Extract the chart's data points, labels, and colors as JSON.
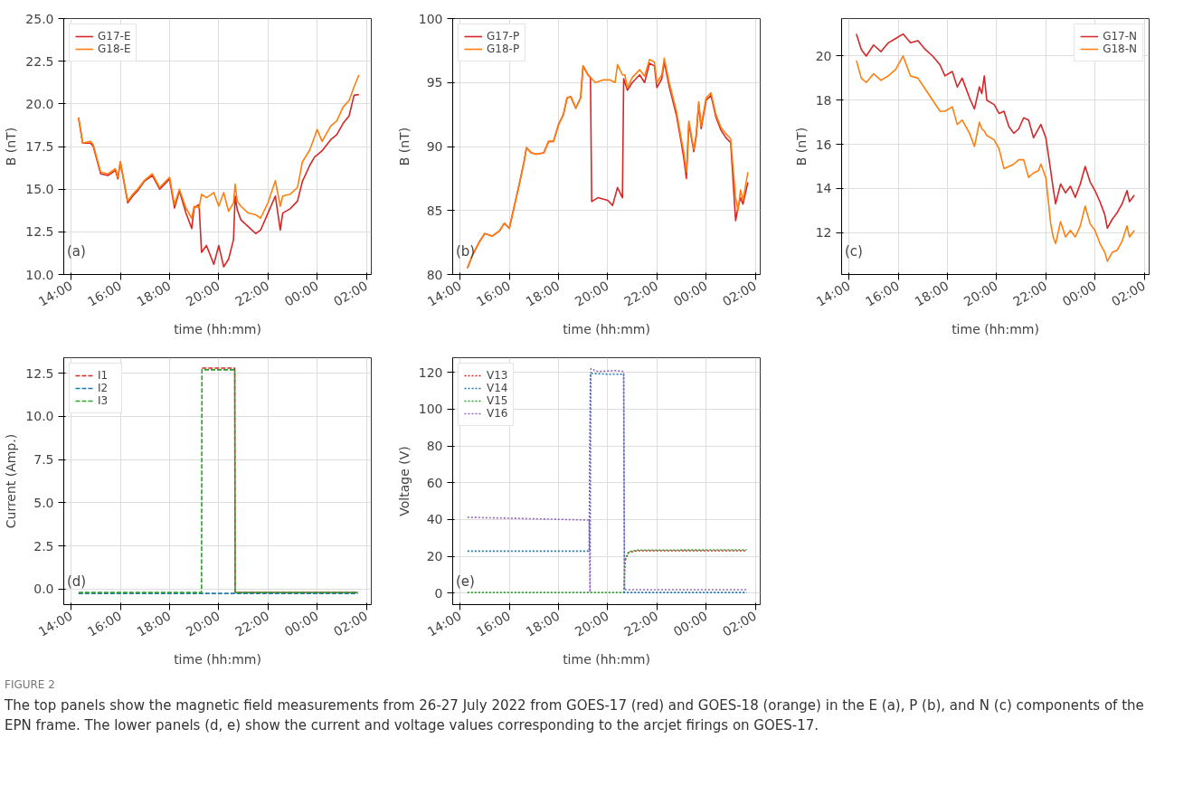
{
  "chart_data": [
    {
      "type": "line",
      "xlabel": "time (hh:mm)",
      "ylabel": "B (nT)",
      "annotations": [
        "(a)"
      ],
      "line_style": "solid",
      "grid": true,
      "legend": "top left",
      "xlim": [
        "2022-07-26T13:42",
        "2022-07-27T02:12"
      ],
      "xticks": [
        {
          "value": "2022-07-26T14:00",
          "label": "14:00"
        },
        {
          "value": "2022-07-26T16:00",
          "label": "16:00"
        },
        {
          "value": "2022-07-26T18:00",
          "label": "18:00"
        },
        {
          "value": "2022-07-26T20:00",
          "label": "20:00"
        },
        {
          "value": "2022-07-26T22:00",
          "label": "22:00"
        },
        {
          "value": "2022-07-27T00:00",
          "label": "00:00"
        },
        {
          "value": "2022-07-27T02:00",
          "label": "02:00"
        }
      ],
      "ylim": [
        10,
        25
      ],
      "yticks": [
        {
          "value": 10,
          "label": "10.0"
        },
        {
          "value": 12.5,
          "label": "12.5"
        },
        {
          "value": 15,
          "label": "15.0"
        },
        {
          "value": 17.5,
          "label": "17.5"
        },
        {
          "value": 20,
          "label": "20.0"
        },
        {
          "value": 22.5,
          "label": "22.5"
        },
        {
          "value": 25,
          "label": "25.0"
        }
      ],
      "x": [
        "2022-07-26T14:18",
        "2022-07-26T14:28",
        "2022-07-26T14:47",
        "2022-07-26T14:54",
        "2022-07-26T15:12",
        "2022-07-26T15:30",
        "2022-07-26T15:48",
        "2022-07-26T15:54",
        "2022-07-26T16:00",
        "2022-07-26T16:18",
        "2022-07-26T16:30",
        "2022-07-26T16:42",
        "2022-07-26T16:58",
        "2022-07-26T17:18",
        "2022-07-26T17:36",
        "2022-07-26T18:00",
        "2022-07-26T18:12",
        "2022-07-26T18:24",
        "2022-07-26T18:40",
        "2022-07-26T18:54",
        "2022-07-26T19:00",
        "2022-07-26T19:12",
        "2022-07-26T19:18",
        "2022-07-26T19:30",
        "2022-07-26T19:48",
        "2022-07-26T20:00",
        "2022-07-26T20:12",
        "2022-07-26T20:24",
        "2022-07-26T20:36",
        "2022-07-26T20:40",
        "2022-07-26T20:45",
        "2022-07-26T20:54",
        "2022-07-26T21:12",
        "2022-07-26T21:30",
        "2022-07-26T21:42",
        "2022-07-26T22:00",
        "2022-07-26T22:18",
        "2022-07-26T22:30",
        "2022-07-26T22:36",
        "2022-07-26T22:54",
        "2022-07-26T23:12",
        "2022-07-26T23:24",
        "2022-07-26T23:42",
        "2022-07-26T23:54",
        "2022-07-27T00:00",
        "2022-07-27T00:12",
        "2022-07-27T00:33",
        "2022-07-27T00:48",
        "2022-07-27T01:03",
        "2022-07-27T01:18",
        "2022-07-27T01:30",
        "2022-07-27T01:42"
      ],
      "series": [
        {
          "name": "G17-E",
          "color": "#d62728",
          "values": [
            19.2,
            17.7,
            17.7,
            17.5,
            15.9,
            15.8,
            16.1,
            15.6,
            16.6,
            14.2,
            14.6,
            14.9,
            15.45,
            15.8,
            15.0,
            15.6,
            13.9,
            14.9,
            13.6,
            12.7,
            13.9,
            14.1,
            11.3,
            11.7,
            10.6,
            11.7,
            10.45,
            10.9,
            12.05,
            14.6,
            13.8,
            13.2,
            12.8,
            12.4,
            12.6,
            13.6,
            14.6,
            12.6,
            13.6,
            13.85,
            14.3,
            15.45,
            16.4,
            16.9,
            17.0,
            17.25,
            17.9,
            18.2,
            18.85,
            19.3,
            20.5,
            20.55
          ]
        },
        {
          "name": "G18-E",
          "color": "#ff7f0e",
          "values": [
            19.2,
            17.7,
            17.8,
            17.6,
            16.0,
            15.9,
            16.2,
            15.7,
            16.6,
            14.3,
            14.7,
            15.0,
            15.5,
            15.9,
            15.1,
            15.7,
            14.1,
            15.0,
            13.9,
            13.3,
            14.0,
            13.9,
            14.7,
            14.5,
            14.8,
            14.0,
            14.8,
            13.7,
            14.2,
            15.3,
            14.3,
            14.0,
            13.6,
            13.5,
            13.3,
            14.2,
            15.5,
            14.0,
            14.6,
            14.7,
            15.1,
            16.6,
            17.3,
            18.1,
            18.5,
            17.8,
            18.7,
            19.0,
            19.8,
            20.2,
            21.0,
            21.7
          ]
        }
      ]
    },
    {
      "type": "line",
      "xlabel": "time (hh:mm)",
      "ylabel": "B (nT)",
      "annotations": [
        "(b)"
      ],
      "line_style": "solid",
      "grid": true,
      "legend": "top left",
      "xlim": [
        "2022-07-26T13:42",
        "2022-07-27T02:12"
      ],
      "xticks": [
        {
          "value": "2022-07-26T14:00",
          "label": "14:00"
        },
        {
          "value": "2022-07-26T16:00",
          "label": "16:00"
        },
        {
          "value": "2022-07-26T18:00",
          "label": "18:00"
        },
        {
          "value": "2022-07-26T20:00",
          "label": "20:00"
        },
        {
          "value": "2022-07-26T22:00",
          "label": "22:00"
        },
        {
          "value": "2022-07-27T00:00",
          "label": "00:00"
        },
        {
          "value": "2022-07-27T02:00",
          "label": "02:00"
        }
      ],
      "ylim": [
        80,
        100
      ],
      "yticks": [
        80,
        85,
        90,
        95,
        100
      ],
      "series": [
        {
          "name": "G17-P",
          "color": "#d62728",
          "x": [
            "2022-07-26T14:18",
            "2022-07-26T14:30",
            "2022-07-26T14:48",
            "2022-07-26T15:00",
            "2022-07-26T15:18",
            "2022-07-26T15:36",
            "2022-07-26T15:48",
            "2022-07-26T16:00",
            "2022-07-26T16:12",
            "2022-07-26T16:24",
            "2022-07-26T16:36",
            "2022-07-26T16:42",
            "2022-07-26T16:54",
            "2022-07-26T17:06",
            "2022-07-26T17:24",
            "2022-07-26T17:36",
            "2022-07-26T17:48",
            "2022-07-26T18:00",
            "2022-07-26T18:12",
            "2022-07-26T18:21",
            "2022-07-26T18:30",
            "2022-07-26T18:42",
            "2022-07-26T18:54",
            "2022-07-26T19:00",
            "2022-07-26T19:12",
            "2022-07-26T19:18",
            "2022-07-26T19:21",
            "2022-07-26T19:36",
            "2022-07-26T20:00",
            "2022-07-26T20:12",
            "2022-07-26T20:24",
            "2022-07-26T20:36",
            "2022-07-26T20:39",
            "2022-07-26T20:48",
            "2022-07-26T21:00",
            "2022-07-26T21:18",
            "2022-07-26T21:30",
            "2022-07-26T21:42",
            "2022-07-26T21:54",
            "2022-07-26T22:00",
            "2022-07-26T22:12",
            "2022-07-26T22:18",
            "2022-07-26T22:30",
            "2022-07-26T22:48",
            "2022-07-26T23:00",
            "2022-07-26T23:06",
            "2022-07-26T23:12",
            "2022-07-26T23:18",
            "2022-07-26T23:30",
            "2022-07-26T23:36",
            "2022-07-26T23:42",
            "2022-07-26T23:48",
            "2022-07-27T00:00",
            "2022-07-27T00:12",
            "2022-07-27T00:24",
            "2022-07-27T00:36",
            "2022-07-27T00:48",
            "2022-07-27T01:00",
            "2022-07-27T01:12",
            "2022-07-27T01:18",
            "2022-07-27T01:24",
            "2022-07-27T01:30",
            "2022-07-27T01:42"
          ],
          "values": [
            80.5,
            81.5,
            82.6,
            83.2,
            83.0,
            83.4,
            84.0,
            83.6,
            85.3,
            87.0,
            88.8,
            89.9,
            89.5,
            89.4,
            89.5,
            90.4,
            90.4,
            91.7,
            92.5,
            93.8,
            93.9,
            93.0,
            93.8,
            96.3,
            95.6,
            95.4,
            85.7,
            86.0,
            85.8,
            85.4,
            86.8,
            86.0,
            95.3,
            94.4,
            95.0,
            95.6,
            95.0,
            96.5,
            96.3,
            94.6,
            95.3,
            96.6,
            94.7,
            92.4,
            90.2,
            89.0,
            87.5,
            91.8,
            89.6,
            90.8,
            93.3,
            91.4,
            93.6,
            94.0,
            92.3,
            91.3,
            90.7,
            90.3,
            84.2,
            85.3,
            86.0,
            85.5,
            87.2
          ]
        },
        {
          "name": "G18-P",
          "color": "#ff7f0e",
          "x": [
            "2022-07-26T14:18",
            "2022-07-26T14:30",
            "2022-07-26T14:48",
            "2022-07-26T15:00",
            "2022-07-26T15:18",
            "2022-07-26T15:36",
            "2022-07-26T15:48",
            "2022-07-26T16:00",
            "2022-07-26T16:12",
            "2022-07-26T16:24",
            "2022-07-26T16:36",
            "2022-07-26T16:42",
            "2022-07-26T16:54",
            "2022-07-26T17:06",
            "2022-07-26T17:24",
            "2022-07-26T17:36",
            "2022-07-26T17:48",
            "2022-07-26T18:00",
            "2022-07-26T18:12",
            "2022-07-26T18:21",
            "2022-07-26T18:30",
            "2022-07-26T18:42",
            "2022-07-26T18:54",
            "2022-07-26T19:00",
            "2022-07-26T19:12",
            "2022-07-26T19:18",
            "2022-07-26T19:30",
            "2022-07-26T19:48",
            "2022-07-26T20:06",
            "2022-07-26T20:18",
            "2022-07-26T20:24",
            "2022-07-26T20:36",
            "2022-07-26T20:42",
            "2022-07-26T20:48",
            "2022-07-26T21:00",
            "2022-07-26T21:18",
            "2022-07-26T21:30",
            "2022-07-26T21:42",
            "2022-07-26T21:54",
            "2022-07-26T22:00",
            "2022-07-26T22:12",
            "2022-07-26T22:18",
            "2022-07-26T22:30",
            "2022-07-26T22:48",
            "2022-07-26T23:00",
            "2022-07-26T23:06",
            "2022-07-26T23:12",
            "2022-07-26T23:18",
            "2022-07-26T23:30",
            "2022-07-26T23:36",
            "2022-07-26T23:42",
            "2022-07-26T23:48",
            "2022-07-27T00:00",
            "2022-07-27T00:12",
            "2022-07-27T00:24",
            "2022-07-27T00:36",
            "2022-07-27T00:48",
            "2022-07-27T01:00",
            "2022-07-27T01:12",
            "2022-07-27T01:18",
            "2022-07-27T01:24",
            "2022-07-27T01:30",
            "2022-07-27T01:42"
          ],
          "values": [
            80.5,
            81.5,
            82.6,
            83.2,
            83.0,
            83.4,
            84.0,
            83.6,
            85.3,
            87.0,
            88.8,
            89.9,
            89.5,
            89.4,
            89.5,
            90.4,
            90.4,
            91.7,
            92.5,
            93.8,
            93.9,
            93.0,
            93.8,
            96.3,
            95.6,
            95.4,
            95.0,
            95.2,
            95.2,
            95.0,
            96.4,
            95.6,
            95.6,
            94.6,
            95.4,
            96.0,
            95.5,
            96.8,
            96.6,
            95.0,
            95.6,
            96.9,
            95.0,
            92.7,
            90.5,
            89.5,
            88.0,
            92.0,
            89.8,
            91.0,
            93.5,
            91.6,
            93.8,
            94.2,
            92.5,
            91.5,
            91.0,
            90.6,
            86.0,
            85.0,
            86.6,
            85.8,
            88.0
          ]
        }
      ]
    },
    {
      "type": "line",
      "xlabel": "time (hh:mm)",
      "ylabel": "B (nT)",
      "annotations": [
        "(c)"
      ],
      "line_style": "solid",
      "grid": true,
      "legend": "top right",
      "xlim": [
        "2022-07-26T13:42",
        "2022-07-27T02:12"
      ],
      "xticks": [
        {
          "value": "2022-07-26T14:00",
          "label": "14:00"
        },
        {
          "value": "2022-07-26T16:00",
          "label": "16:00"
        },
        {
          "value": "2022-07-26T18:00",
          "label": "18:00"
        },
        {
          "value": "2022-07-26T20:00",
          "label": "20:00"
        },
        {
          "value": "2022-07-26T22:00",
          "label": "22:00"
        },
        {
          "value": "2022-07-27T00:00",
          "label": "00:00"
        },
        {
          "value": "2022-07-27T02:00",
          "label": "02:00"
        }
      ],
      "ylim": [
        10.1,
        21.7
      ],
      "yticks": [
        12,
        14,
        16,
        18,
        20
      ],
      "x": [
        "2022-07-26T14:18",
        "2022-07-26T14:30",
        "2022-07-26T14:42",
        "2022-07-26T15:00",
        "2022-07-26T15:18",
        "2022-07-26T15:36",
        "2022-07-26T15:54",
        "2022-07-26T16:12",
        "2022-07-26T16:30",
        "2022-07-26T16:48",
        "2022-07-26T17:06",
        "2022-07-26T17:24",
        "2022-07-26T17:42",
        "2022-07-26T17:54",
        "2022-07-26T18:12",
        "2022-07-26T18:24",
        "2022-07-26T18:36",
        "2022-07-26T18:54",
        "2022-07-26T19:06",
        "2022-07-26T19:18",
        "2022-07-26T19:24",
        "2022-07-26T19:30",
        "2022-07-26T19:36",
        "2022-07-26T19:54",
        "2022-07-26T20:06",
        "2022-07-26T20:18",
        "2022-07-26T20:30",
        "2022-07-26T20:42",
        "2022-07-26T20:54",
        "2022-07-26T21:06",
        "2022-07-26T21:18",
        "2022-07-26T21:30",
        "2022-07-26T21:42",
        "2022-07-26T21:48",
        "2022-07-26T22:00",
        "2022-07-26T22:12",
        "2022-07-26T22:18",
        "2022-07-26T22:24",
        "2022-07-26T22:36",
        "2022-07-26T22:48",
        "2022-07-26T23:00",
        "2022-07-26T23:12",
        "2022-07-26T23:24",
        "2022-07-26T23:36",
        "2022-07-26T23:48",
        "2022-07-27T00:00",
        "2022-07-27T00:12",
        "2022-07-27T00:24",
        "2022-07-27T00:30",
        "2022-07-27T00:42",
        "2022-07-27T00:54",
        "2022-07-27T01:06",
        "2022-07-27T01:18",
        "2022-07-27T01:24",
        "2022-07-27T01:36"
      ],
      "series": [
        {
          "name": "G17-N",
          "color": "#d62728",
          "values": [
            21.0,
            20.3,
            20.0,
            20.5,
            20.2,
            20.6,
            20.8,
            21.0,
            20.6,
            20.7,
            20.3,
            20.0,
            19.6,
            19.1,
            19.3,
            18.6,
            19.0,
            18.1,
            17.6,
            18.6,
            18.3,
            19.1,
            18.0,
            17.8,
            17.4,
            17.5,
            16.8,
            16.5,
            16.7,
            17.2,
            17.1,
            16.3,
            16.7,
            16.9,
            16.3,
            14.8,
            14.0,
            13.3,
            14.2,
            13.8,
            14.1,
            13.6,
            14.2,
            15.0,
            14.3,
            13.9,
            13.4,
            12.8,
            12.2,
            12.6,
            12.9,
            13.3,
            13.9,
            13.4,
            13.7
          ]
        },
        {
          "name": "G18-N",
          "color": "#ff7f0e",
          "values": [
            19.8,
            19.0,
            18.8,
            19.2,
            18.9,
            19.1,
            19.4,
            20.0,
            19.1,
            19.0,
            18.5,
            18.0,
            17.5,
            17.5,
            17.7,
            16.9,
            17.1,
            16.5,
            15.9,
            17.0,
            16.7,
            16.6,
            16.4,
            16.2,
            15.8,
            14.9,
            15.0,
            15.1,
            15.3,
            15.3,
            14.5,
            14.7,
            14.8,
            15.1,
            14.5,
            12.4,
            11.8,
            11.5,
            12.5,
            11.8,
            12.1,
            11.8,
            12.3,
            13.2,
            12.4,
            12.1,
            11.5,
            11.1,
            10.7,
            11.1,
            11.2,
            11.6,
            12.3,
            11.8,
            12.1
          ]
        }
      ]
    },
    {
      "type": "line",
      "xlabel": "time (hh:mm)",
      "ylabel": "Current (Amp.)",
      "annotations": [
        "(d)"
      ],
      "line_style": "dashed",
      "grid": true,
      "legend": "top left",
      "xlim": [
        "2022-07-26T13:42",
        "2022-07-27T02:12"
      ],
      "xticks": [
        {
          "value": "2022-07-26T14:00",
          "label": "14:00"
        },
        {
          "value": "2022-07-26T16:00",
          "label": "16:00"
        },
        {
          "value": "2022-07-26T18:00",
          "label": "18:00"
        },
        {
          "value": "2022-07-26T20:00",
          "label": "20:00"
        },
        {
          "value": "2022-07-26T22:00",
          "label": "22:00"
        },
        {
          "value": "2022-07-27T00:00",
          "label": "00:00"
        },
        {
          "value": "2022-07-27T02:00",
          "label": "02:00"
        }
      ],
      "ylim": [
        -0.9,
        13.4
      ],
      "yticks": [
        {
          "value": 0,
          "label": "0.0"
        },
        {
          "value": 2.5,
          "label": "2.5"
        },
        {
          "value": 5,
          "label": "5.0"
        },
        {
          "value": 7.5,
          "label": "7.5"
        },
        {
          "value": 10,
          "label": "10.0"
        },
        {
          "value": 12.5,
          "label": "12.5"
        }
      ],
      "series": [
        {
          "name": "I1",
          "color": "#d62728",
          "x": [
            "2022-07-26T19:19",
            "2022-07-26T20:39",
            "2022-07-26T20:40",
            "2022-07-27T01:39"
          ],
          "values": [
            12.8,
            12.8,
            -0.2,
            -0.2
          ]
        },
        {
          "name": "I2",
          "color": "#1f77b4",
          "x": [
            "2022-07-26T14:18",
            "2022-07-27T01:39"
          ],
          "values": [
            -0.25,
            -0.25
          ]
        },
        {
          "name": "I3",
          "color": "#2ca02c",
          "x": [
            "2022-07-26T14:18",
            "2022-07-26T19:18",
            "2022-07-26T19:19",
            "2022-07-26T20:39",
            "2022-07-26T20:40",
            "2022-07-27T01:39"
          ],
          "values": [
            -0.2,
            -0.2,
            12.7,
            12.7,
            -0.2,
            -0.2
          ]
        }
      ]
    },
    {
      "type": "line",
      "xlabel": "time (hh:mm)",
      "ylabel": "Voltage (V)",
      "annotations": [
        "(e)",
        "FIGURE 2",
        "The top panels show the magnetic field measurements from 26-27 July 2022 from GOES-17 (red) and GOES-18 (orange) in the E (a), P (b), and N (c) components of the EPN frame. The lower panels (d, e) show the current and voltage values corresponding to the arcjet firings on GOES-17."
      ],
      "line_style": "dotted",
      "grid": true,
      "legend": "top left",
      "xlim": [
        "2022-07-26T13:42",
        "2022-07-27T02:12"
      ],
      "xticks": [
        {
          "value": "2022-07-26T14:00",
          "label": "14:00"
        },
        {
          "value": "2022-07-26T16:00",
          "label": "16:00"
        },
        {
          "value": "2022-07-26T18:00",
          "label": "18:00"
        },
        {
          "value": "2022-07-26T20:00",
          "label": "20:00"
        },
        {
          "value": "2022-07-26T22:00",
          "label": "22:00"
        },
        {
          "value": "2022-07-27T00:00",
          "label": "00:00"
        },
        {
          "value": "2022-07-27T02:00",
          "label": "02:00"
        }
      ],
      "ylim": [
        -6.3,
        128
      ],
      "yticks": [
        0,
        20,
        40,
        60,
        80,
        100,
        120
      ],
      "series": [
        {
          "name": "V13",
          "color": "#d62728",
          "x": [
            "2022-07-26T20:43",
            "2022-07-26T20:51",
            "2022-07-26T21:12",
            "2022-07-27T01:39"
          ],
          "values": [
            18,
            22,
            23,
            23
          ]
        },
        {
          "name": "V14",
          "color": "#1f77b4",
          "x": [
            "2022-07-26T14:18",
            "2022-07-26T19:15",
            "2022-07-26T19:16",
            "2022-07-26T19:18",
            "2022-07-26T20:00",
            "2022-07-26T20:39",
            "2022-07-26T20:41",
            "2022-07-27T01:39"
          ],
          "values": [
            22.8,
            22.8,
            67,
            119.5,
            119,
            119,
            0.3,
            0.3
          ]
        },
        {
          "name": "V15",
          "color": "#2ca02c",
          "x": [
            "2022-07-26T14:18",
            "2022-07-26T20:39",
            "2022-07-26T20:43",
            "2022-07-26T20:51",
            "2022-07-26T21:12",
            "2022-07-27T01:39"
          ],
          "values": [
            0.3,
            0.3,
            18,
            22.5,
            23.3,
            23.5
          ]
        },
        {
          "name": "V16",
          "color": "#9467bd",
          "x": [
            "2022-07-26T14:18",
            "2022-07-26T19:15",
            "2022-07-26T19:17",
            "2022-07-26T19:19",
            "2022-07-26T19:36",
            "2022-07-26T20:18",
            "2022-07-26T20:39",
            "2022-07-26T20:41",
            "2022-07-27T01:39"
          ],
          "values": [
            41.2,
            39.7,
            0.5,
            122,
            120.5,
            121,
            120.5,
            1.8,
            1.8
          ]
        }
      ]
    }
  ]
}
